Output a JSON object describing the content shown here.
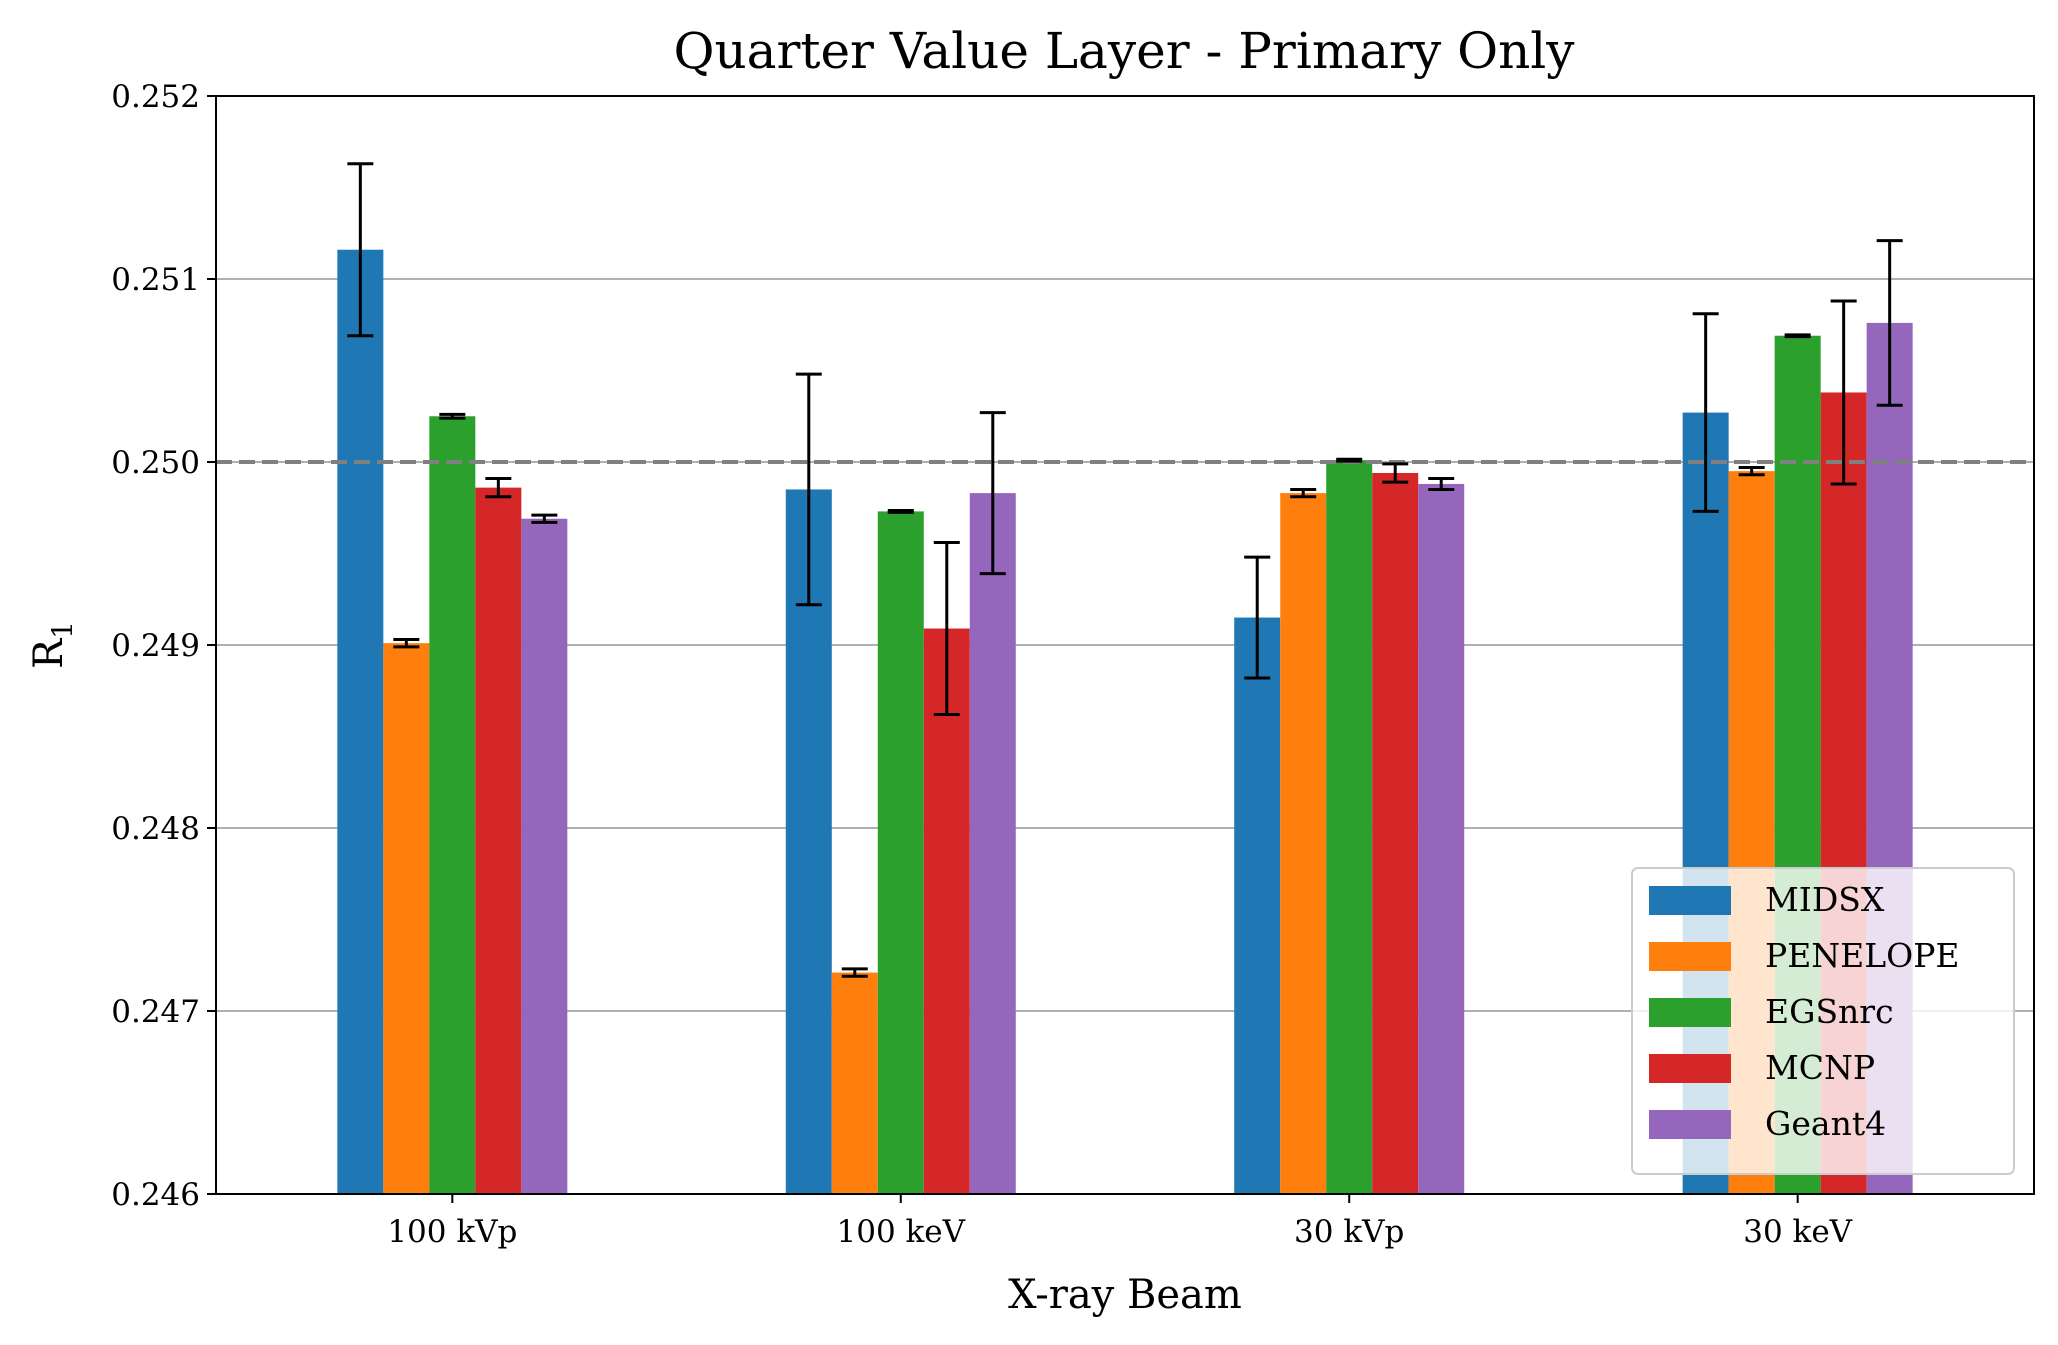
{
  "chart_data": {
    "type": "bar",
    "title": "Quarter Value Layer - Primary Only",
    "xlabel": "X-ray Beam",
    "ylabel": "R",
    "ylabel_subscript": "1",
    "categories": [
      "100 kVp",
      "100 keV",
      "30 kVp",
      "30 keV"
    ],
    "ylim": [
      0.246,
      0.252
    ],
    "yticks": [
      0.246,
      0.247,
      0.248,
      0.249,
      0.25,
      0.251,
      0.252
    ],
    "ytick_labels": [
      "0.246",
      "0.247",
      "0.248",
      "0.249",
      "0.250",
      "0.251",
      "0.252"
    ],
    "grid": "horizontal",
    "reference_line": 0.25,
    "reference_color": "#808080",
    "legend_position": "lower-right",
    "series": [
      {
        "name": "MIDSX",
        "color": "#1f77b4",
        "values": [
          0.25116,
          0.24985,
          0.24915,
          0.25027
        ],
        "errors": [
          0.00047,
          0.00063,
          0.00033,
          0.00054
        ]
      },
      {
        "name": "PENELOPE",
        "color": "#ff7f0e",
        "values": [
          0.24901,
          0.24721,
          0.24983,
          0.24995
        ],
        "errors": [
          2e-05,
          2e-05,
          2e-05,
          2e-05
        ]
      },
      {
        "name": "EGSnrc",
        "color": "#2ca02c",
        "values": [
          0.25025,
          0.24973,
          0.25001,
          0.25069
        ],
        "errors": [
          1e-05,
          5e-06,
          5e-06,
          5e-06
        ]
      },
      {
        "name": "MCNP",
        "color": "#d62728",
        "values": [
          0.24986,
          0.24909,
          0.24994,
          0.25038
        ],
        "errors": [
          5e-05,
          0.00047,
          5e-05,
          0.0005
        ]
      },
      {
        "name": "Geant4",
        "color": "#9467bd",
        "values": [
          0.24969,
          0.24983,
          0.24988,
          0.25076
        ],
        "errors": [
          2e-05,
          0.00044,
          3e-05,
          0.00045
        ]
      }
    ]
  }
}
